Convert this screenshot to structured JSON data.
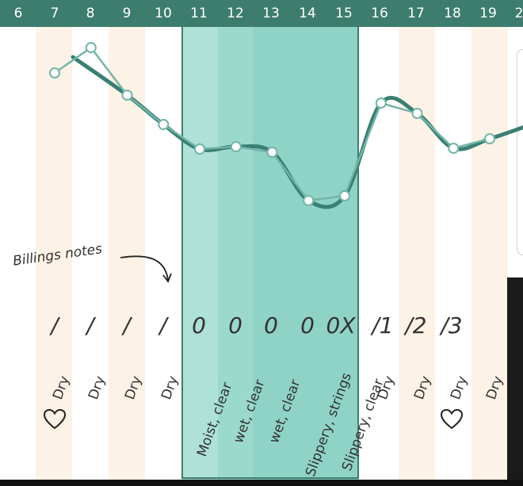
{
  "header": {
    "days": [
      "6",
      "7",
      "8",
      "9",
      "10",
      "11",
      "12",
      "13",
      "14",
      "15",
      "16",
      "17",
      "18",
      "19",
      "2"
    ]
  },
  "colors": {
    "header_bg": "#3d7d6e",
    "fertile_window": "#8fd3c6",
    "cream_stripe": "#fdf2e6",
    "curve_smooth": "#3a7f73",
    "curve_raw": "#72b5a8"
  },
  "chart": {
    "points": [
      {
        "day": "7",
        "value": 92
      },
      {
        "day": "8",
        "value": 60
      },
      {
        "day": "9",
        "value": 120
      },
      {
        "day": "10",
        "value": 157
      },
      {
        "day": "11",
        "value": 188
      },
      {
        "day": "12",
        "value": 185
      },
      {
        "day": "13",
        "value": 192
      },
      {
        "day": "14",
        "value": 253
      },
      {
        "day": "15",
        "value": 247
      },
      {
        "day": "16",
        "value": 130
      },
      {
        "day": "17",
        "value": 143
      },
      {
        "day": "18",
        "value": 187
      },
      {
        "day": "19",
        "value": 175
      }
    ]
  },
  "annotation": {
    "label": "Billings notes"
  },
  "scores": [
    {
      "day": "7",
      "text": "/"
    },
    {
      "day": "8",
      "text": "/"
    },
    {
      "day": "9",
      "text": "/"
    },
    {
      "day": "10",
      "text": "/"
    },
    {
      "day": "11",
      "text": "0"
    },
    {
      "day": "12",
      "text": "0"
    },
    {
      "day": "13",
      "text": "0"
    },
    {
      "day": "14",
      "text": "0"
    },
    {
      "day": "15",
      "text": "0X"
    },
    {
      "day": "16",
      "text": "/1"
    },
    {
      "day": "17",
      "text": "/2"
    },
    {
      "day": "18",
      "text": "/3"
    }
  ],
  "notes": [
    {
      "day": "7",
      "text": "Dry"
    },
    {
      "day": "8",
      "text": "Dry"
    },
    {
      "day": "9",
      "text": "Dry"
    },
    {
      "day": "10",
      "text": "Dry"
    },
    {
      "day": "11",
      "text": "Moist, clear"
    },
    {
      "day": "12",
      "text": "wet, clear"
    },
    {
      "day": "13",
      "text": "wet, clear"
    },
    {
      "day": "14",
      "text": "Slippery, strings"
    },
    {
      "day": "15",
      "text": "Slippery, clear"
    },
    {
      "day": "16",
      "text": "Dry"
    },
    {
      "day": "17",
      "text": "Dry"
    },
    {
      "day": "18",
      "text": "Dry"
    },
    {
      "day": "19",
      "text": "Dry"
    }
  ],
  "markers": [
    {
      "day": "7",
      "icon": "heart-icon"
    },
    {
      "day": "18",
      "icon": "heart-icon"
    }
  ]
}
